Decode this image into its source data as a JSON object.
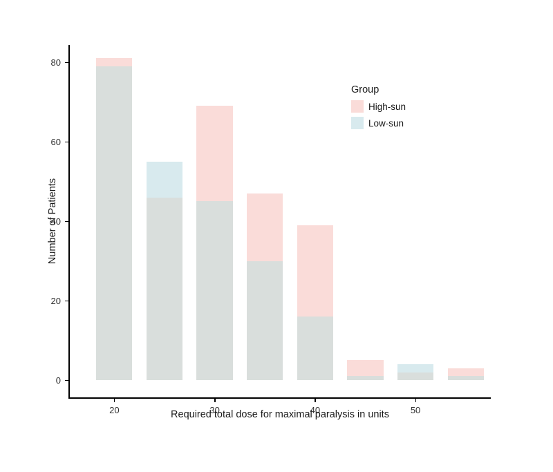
{
  "chart_data": {
    "type": "bar",
    "subtype": "overlaid-histogram",
    "title": "",
    "xlabel": "Required total dose for maximal paralysis in units",
    "ylabel": "Number of Patients",
    "x": [
      20,
      25,
      30,
      35,
      40,
      45,
      50,
      55
    ],
    "series": [
      {
        "name": "High-sun",
        "color": "#fadcd9",
        "values": [
          81,
          46,
          69,
          47,
          39,
          5,
          2,
          3
        ]
      },
      {
        "name": "Low-sun",
        "color": "#d8eaee",
        "values": [
          79,
          55,
          45,
          30,
          16,
          1,
          4,
          1
        ]
      }
    ],
    "overlap_color": "#d9dedc",
    "x_ticks": [
      20,
      30,
      40,
      50
    ],
    "y_ticks": [
      0,
      20,
      40,
      60,
      80
    ],
    "xlim": [
      15.5,
      57.5
    ],
    "ylim": [
      0,
      84.3
    ],
    "grid": false,
    "legend_title": "Group",
    "legend_position": "inside-top-right",
    "axis_color": "#000000"
  }
}
